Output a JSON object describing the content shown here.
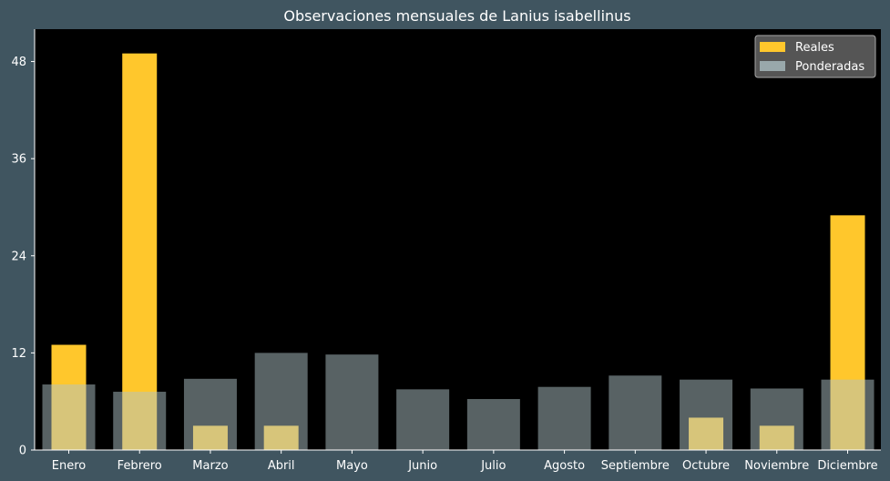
{
  "chart_data": {
    "type": "bar",
    "title": "Observaciones mensuales de Lanius isabellinus",
    "xlabel": "",
    "ylabel": "",
    "categories": [
      "Enero",
      "Febrero",
      "Marzo",
      "Abril",
      "Mayo",
      "Junio",
      "Julio",
      "Agosto",
      "Septiembre",
      "Octubre",
      "Noviembre",
      "Diciembre"
    ],
    "series": [
      {
        "name": "Reales",
        "color": "#ffc72c",
        "values": [
          13,
          49,
          3,
          3,
          0,
          0,
          0,
          0,
          0,
          4,
          3,
          29
        ]
      },
      {
        "name": "Ponderadas",
        "color": "#b0c4c8",
        "opacity": 0.5,
        "values": [
          8.1,
          7.2,
          8.8,
          12.0,
          11.8,
          7.5,
          6.3,
          7.8,
          9.2,
          8.7,
          7.6,
          8.7
        ]
      }
    ],
    "ylim": [
      0,
      52
    ],
    "yticks": [
      0,
      12,
      24,
      36,
      48
    ],
    "grid": false,
    "legend_position": "top-right",
    "background": "#000000",
    "figure_background": "#405560"
  }
}
